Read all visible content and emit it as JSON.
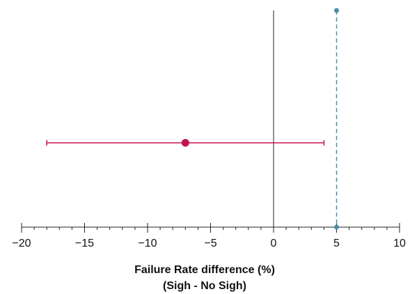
{
  "chart_data": {
    "type": "scatter",
    "title": "",
    "xlabel_line1": "Failure Rate difference (%)",
    "xlabel_line2": "(Sigh - No Sigh)",
    "ylabel": "",
    "xlim": [
      -20,
      10
    ],
    "major_ticks": [
      -20,
      -15,
      -10,
      -5,
      0,
      5,
      10
    ],
    "tick_labels": [
      "−20",
      "−15",
      "−10",
      "−5",
      "0",
      "5",
      "10"
    ],
    "minor_tick_step": 1,
    "reference_line_x": 0,
    "noninferiority_margin_x": 5,
    "estimate": {
      "x": -7,
      "ci_low": -18,
      "ci_high": 4
    },
    "grid": false,
    "legend": "none",
    "colors": {
      "estimate": "#c4144e",
      "margin": "#4a8fa8",
      "reference": "#222222",
      "axis": "#222222"
    }
  }
}
